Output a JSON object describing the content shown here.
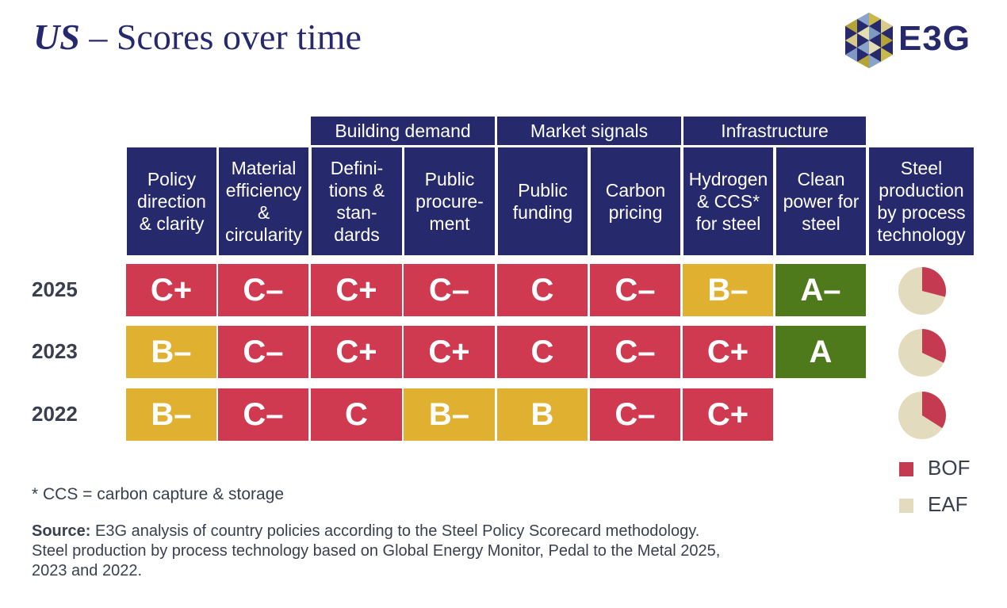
{
  "title": {
    "country": "US",
    "rest": " – Scores over time"
  },
  "logo": {
    "text": "E3G"
  },
  "group_headers": [
    "Building demand",
    "Market signals",
    "Infrastructure"
  ],
  "columns": [
    "Policy\ndirection\n& clarity",
    "Material\nefficiency\n&\ncircularity",
    "Defini-\ntions &\nstan-\ndards",
    "Public\nprocure-\nment",
    "Public\nfunding",
    "Carbon\npricing",
    "Hydrogen\n& CCS*\nfor steel",
    "Clean\npower for\nsteel",
    "Steel\nproduction\nby process\ntechnology"
  ],
  "colors": {
    "red": "#d03a50",
    "yellow": "#e0b030",
    "green": "#4f7a1c",
    "navy": "#27296d",
    "bof": "#c43a50",
    "eaf": "#e3dbbd"
  },
  "chart_data": {
    "type": "table",
    "years": [
      "2025",
      "2023",
      "2022"
    ],
    "scores": [
      [
        "C+",
        "C–",
        "C+",
        "C–",
        "C",
        "C–",
        "B–",
        "A–"
      ],
      [
        "B–",
        "C–",
        "C+",
        "C+",
        "C",
        "C–",
        "C+",
        "A"
      ],
      [
        "B–",
        "C–",
        "C",
        "B–",
        "B",
        "C–",
        "C+",
        ""
      ]
    ],
    "score_colors": [
      [
        "red",
        "red",
        "red",
        "red",
        "red",
        "red",
        "yellow",
        "green"
      ],
      [
        "yellow",
        "red",
        "red",
        "red",
        "red",
        "red",
        "red",
        "green"
      ],
      [
        "yellow",
        "red",
        "red",
        "yellow",
        "yellow",
        "red",
        "red",
        ""
      ]
    ],
    "steel_production_share": [
      {
        "BOF": 0.29,
        "EAF": 0.71
      },
      {
        "BOF": 0.32,
        "EAF": 0.68
      },
      {
        "BOF": 0.34,
        "EAF": 0.66
      }
    ],
    "legend": [
      "BOF",
      "EAF"
    ]
  },
  "footnote": "* CCS = carbon capture & storage",
  "source": {
    "label": "Source:",
    "line1": " E3G analysis of country policies according to the Steel Policy Scorecard methodology.",
    "line2": "Steel production by process technology based on Global Energy Monitor, Pedal to the Metal 2025,",
    "line3": "2023 and 2022."
  }
}
